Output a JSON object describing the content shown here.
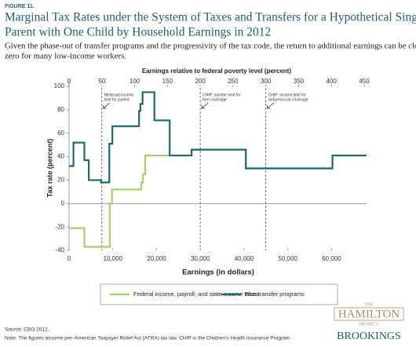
{
  "figure_label": "FIGURE 11.",
  "chart_data": {
    "type": "line",
    "title": [
      "Marginal Tax Rates under the System of Taxes and Transfers for a Hypothetical Single",
      "Parent with One Child by Household Earnings in 2012"
    ],
    "subtitle": [
      "Given the phase-out of transfer programs and the progressivity of the tax code, the return to additional earnings can be close to",
      "zero for many low-income workers."
    ],
    "x2label": "Earnings relative to federal poverty level (percent)",
    "xlabel": "Earnings (in dollars)",
    "ylabel": "Tax rate (percent)",
    "xlim": [
      0,
      68000
    ],
    "xticks": [
      0,
      {
        "value": 10000,
        "label": "10,000"
      },
      {
        "value": 20000,
        "label": "20,000"
      },
      {
        "value": 30000,
        "label": "30,000"
      },
      {
        "value": 40000,
        "label": "40,000"
      },
      {
        "value": 50000,
        "label": "50,000"
      },
      {
        "value": 60000,
        "label": "60,000"
      }
    ],
    "x2lim": [
      0,
      450
    ],
    "x2ticks": [
      0,
      50,
      100,
      150,
      200,
      250,
      300,
      350,
      400,
      450
    ],
    "ylim": [
      -40,
      100
    ],
    "yticks": [
      -40,
      -20,
      0,
      20,
      40,
      60,
      80,
      100
    ],
    "annotations": [
      {
        "text": [
          "Medicaid income",
          "limit for parent"
        ],
        "x2": 50
      },
      {
        "text": [
          "CHIP: income limit for",
          "free coverage"
        ],
        "x2": 200
      },
      {
        "text": [
          "CHIP: income limit for",
          "reduced-cost coverage"
        ],
        "x2": 300
      }
    ],
    "series": [
      {
        "name": "Federal income, payroll, and state income taxes",
        "color": "#a6cf6a",
        "x": [
          0,
          3500,
          3500,
          9300,
          9300,
          9800,
          9800,
          16500,
          16500,
          16900,
          16900,
          17400,
          17400,
          28000,
          28000,
          40400,
          40400,
          60200,
          60200,
          68000
        ],
        "values": [
          -21,
          -21,
          -37,
          -37,
          0,
          0,
          12,
          12,
          18,
          18,
          25,
          25,
          41,
          41,
          46,
          46,
          30,
          30,
          41,
          41
        ]
      },
      {
        "name": "Plus transfer programs",
        "color": "#1a6b6e",
        "x": [
          0,
          1000,
          1000,
          3500,
          3500,
          4500,
          4500,
          7300,
          7300,
          9200,
          9200,
          9900,
          9900,
          16000,
          16000,
          16300,
          16300,
          16800,
          16800,
          19500,
          19500,
          23000,
          23000,
          28000,
          28000,
          40400,
          40400,
          60200,
          60200,
          68000
        ],
        "values": [
          32,
          32,
          52,
          52,
          37,
          37,
          20,
          20,
          18,
          18,
          51,
          51,
          66,
          66,
          79,
          79,
          85,
          85,
          95,
          95,
          71,
          71,
          41,
          41,
          46,
          46,
          30,
          30,
          41,
          41
        ]
      }
    ]
  },
  "source": "Source: CBO 2012.",
  "note": "Note: The figures assume pre–American Taxpayer Relief Act (ATRA) tax law. CHIP is the Children’s Health Insurance Program.",
  "logo": {
    "the": "THE",
    "hamilton": "HAMILTON",
    "project": "PROJECT",
    "brookings": "BROOKINGS"
  }
}
